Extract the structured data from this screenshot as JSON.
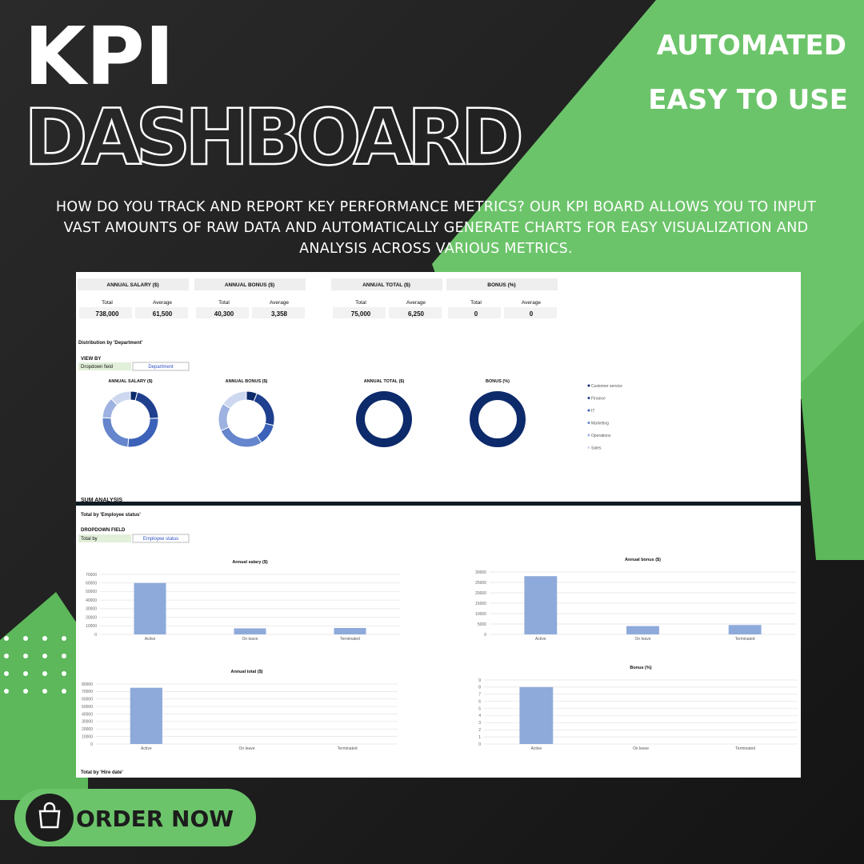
{
  "header": {
    "title": "KPI",
    "subtitle": "DASHBOARD",
    "badges": [
      "AUTOMATED",
      "EASY TO USE"
    ],
    "description": "HOW DO YOU TRACK AND REPORT KEY PERFORMANCE METRICS? OUR KPI BOARD ALLOWS YOU TO INPUT VAST AMOUNTS OF RAW DATA AND AUTOMATICALLY GENERATE CHARTS FOR EASY VISUALIZATION AND ANALYSIS ACROSS VARIOUS METRICS."
  },
  "summary": {
    "total_label": "Total",
    "average_label": "Average",
    "cards": [
      {
        "title": "ANNUAL SALARY ($)",
        "total": "738,000",
        "average": "61,500"
      },
      {
        "title": "ANNUAL BONUS ($)",
        "total": "40,300",
        "average": "3,358"
      },
      {
        "title": "ANNUAL TOTAL ($)",
        "total": "75,000",
        "average": "6,250"
      },
      {
        "title": "BONUS (%)",
        "total": "0",
        "average": "0"
      }
    ]
  },
  "distribution": {
    "heading": "Distribution by 'Department'",
    "view_by": "VIEW BY",
    "field_label": "Dropdown field",
    "field_value": "Department"
  },
  "sum_analysis": {
    "heading": "SUM ANALYSIS",
    "subheading": "Total by 'Employee status'",
    "dropdown": "DROPDOWN FIELD",
    "field_label": "Total by",
    "field_value": "Employee status",
    "footer": "Total by 'Hire date'"
  },
  "button": {
    "label": "ORDER NOW"
  },
  "chart_data": [
    {
      "type": "pie",
      "title": "ANNUAL SALARY ($)",
      "categories": [
        "Customer service",
        "Finance",
        "IT",
        "Marketing",
        "Operations",
        "Sales"
      ],
      "values": [
        30000,
        150000,
        200000,
        180000,
        90000,
        88000
      ],
      "colors": [
        "#0d2a6b",
        "#1f3f8f",
        "#3b62b8",
        "#6585cc",
        "#9db2e0",
        "#cdd8f0"
      ]
    },
    {
      "type": "pie",
      "title": "ANNUAL BONUS ($)",
      "values": [
        2500,
        9000,
        5000,
        11000,
        6500,
        6300
      ],
      "colors": [
        "#0d2a6b",
        "#1f3f8f",
        "#3b62b8",
        "#6585cc",
        "#9db2e0",
        "#cdd8f0"
      ]
    },
    {
      "type": "pie",
      "title": "ANNUAL TOTAL ($)",
      "values": [
        75000,
        0,
        0,
        0,
        0,
        0
      ],
      "colors": [
        "#0d2a6b",
        "#1f3f8f",
        "#3b62b8",
        "#6585cc",
        "#9db2e0",
        "#cdd8f0"
      ]
    },
    {
      "type": "pie",
      "title": "BONUS (%)",
      "values": [
        0,
        0,
        0,
        0,
        0,
        0
      ],
      "colors": [
        "#0d2a6b",
        "#1f3f8f",
        "#3b62b8",
        "#6585cc",
        "#9db2e0",
        "#cdd8f0"
      ]
    },
    {
      "type": "bar",
      "title": "Annual salary ($)",
      "categories": [
        "Active",
        "On leave",
        "Terminated"
      ],
      "values": [
        60000,
        7000,
        7500
      ],
      "color": "#8eaadb",
      "ylim": [
        0,
        70000
      ],
      "yticks": [
        0,
        10000,
        20000,
        30000,
        40000,
        50000,
        60000,
        70000
      ],
      "grid": true
    },
    {
      "type": "bar",
      "title": "Annual bonus ($)",
      "categories": [
        "Active",
        "On leave",
        "Terminated"
      ],
      "values": [
        28000,
        4000,
        4500
      ],
      "color": "#8eaadb",
      "ylim": [
        0,
        30000
      ],
      "yticks": [
        0,
        5000,
        10000,
        15000,
        20000,
        25000,
        30000
      ],
      "grid": true
    },
    {
      "type": "bar",
      "title": "Annual total ($)",
      "categories": [
        "Active",
        "On leave",
        "Terminated"
      ],
      "values": [
        75000,
        0,
        0
      ],
      "color": "#8eaadb",
      "ylim": [
        0,
        80000
      ],
      "yticks": [
        0,
        10000,
        20000,
        30000,
        40000,
        50000,
        60000,
        70000,
        80000
      ],
      "grid": true
    },
    {
      "type": "bar",
      "title": "Bonus (%)",
      "categories": [
        "Active",
        "On leave",
        "Terminated"
      ],
      "values": [
        8,
        0,
        0
      ],
      "color": "#8eaadb",
      "ylim": [
        0,
        9
      ],
      "yticks": [
        0,
        1,
        2,
        3,
        4,
        5,
        6,
        7,
        8,
        9
      ],
      "grid": true
    }
  ]
}
